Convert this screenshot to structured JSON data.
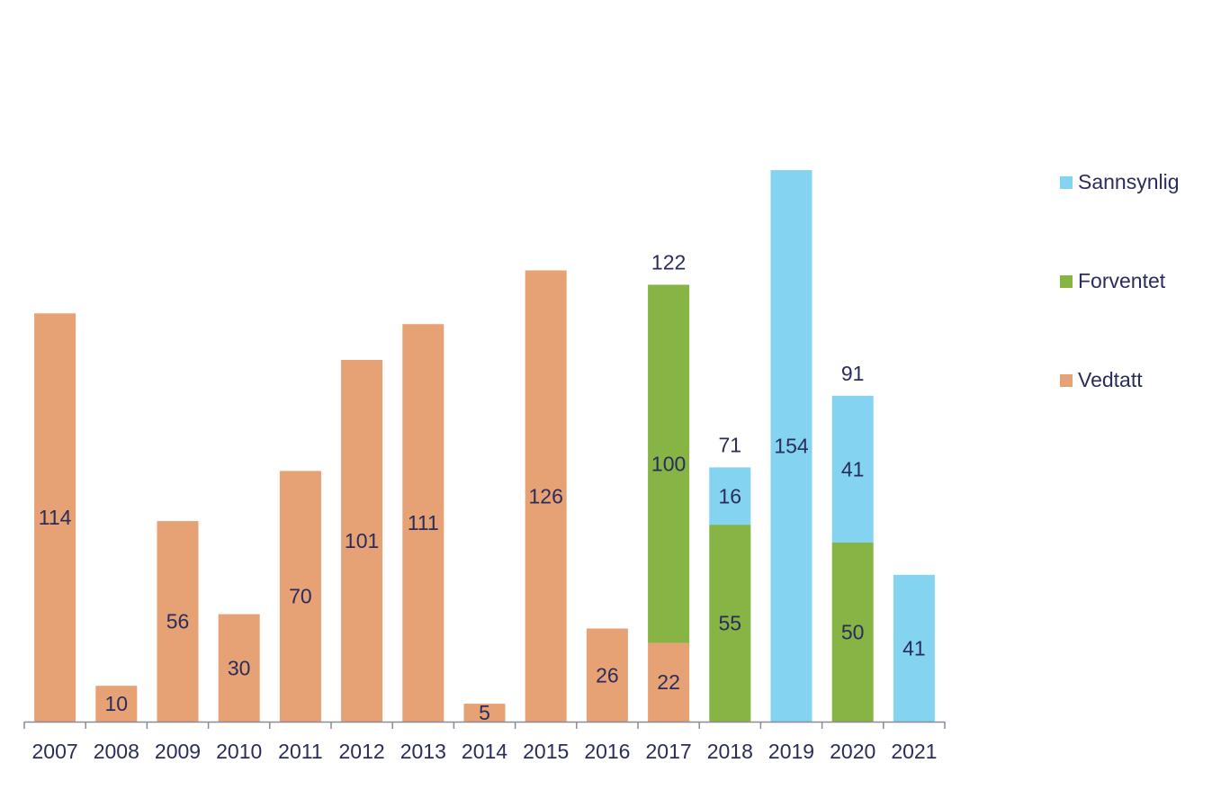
{
  "chart_data": {
    "type": "bar",
    "stacked": true,
    "categories": [
      "2007",
      "2008",
      "2009",
      "2010",
      "2011",
      "2012",
      "2013",
      "2014",
      "2015",
      "2016",
      "2017",
      "2018",
      "2019",
      "2020",
      "2021"
    ],
    "series": [
      {
        "name": "Vedtatt",
        "color": "#e6a174",
        "values": [
          114,
          10,
          56,
          30,
          70,
          101,
          111,
          5,
          126,
          26,
          22,
          0,
          0,
          0,
          0
        ]
      },
      {
        "name": "Forventet",
        "color": "#86b445",
        "values": [
          0,
          0,
          0,
          0,
          0,
          0,
          0,
          0,
          0,
          0,
          100,
          55,
          0,
          50,
          0
        ]
      },
      {
        "name": "Sannsynlig",
        "color": "#84d3f1",
        "values": [
          0,
          0,
          0,
          0,
          0,
          0,
          0,
          0,
          0,
          0,
          0,
          16,
          154,
          41,
          41
        ]
      }
    ],
    "totals": [
      {
        "category": "2017",
        "value": 122
      },
      {
        "category": "2018",
        "value": 71
      },
      {
        "category": "2020",
        "value": 91
      }
    ],
    "legend_order": [
      "Sannsynlig",
      "Forventet",
      "Vedtatt"
    ],
    "legend_position": "right",
    "y_axis_visible": false,
    "grid": false,
    "title": "",
    "xlabel": "",
    "ylabel": "",
    "label_color": "#2a2d5c",
    "axis_color": "#8a8a9a"
  }
}
